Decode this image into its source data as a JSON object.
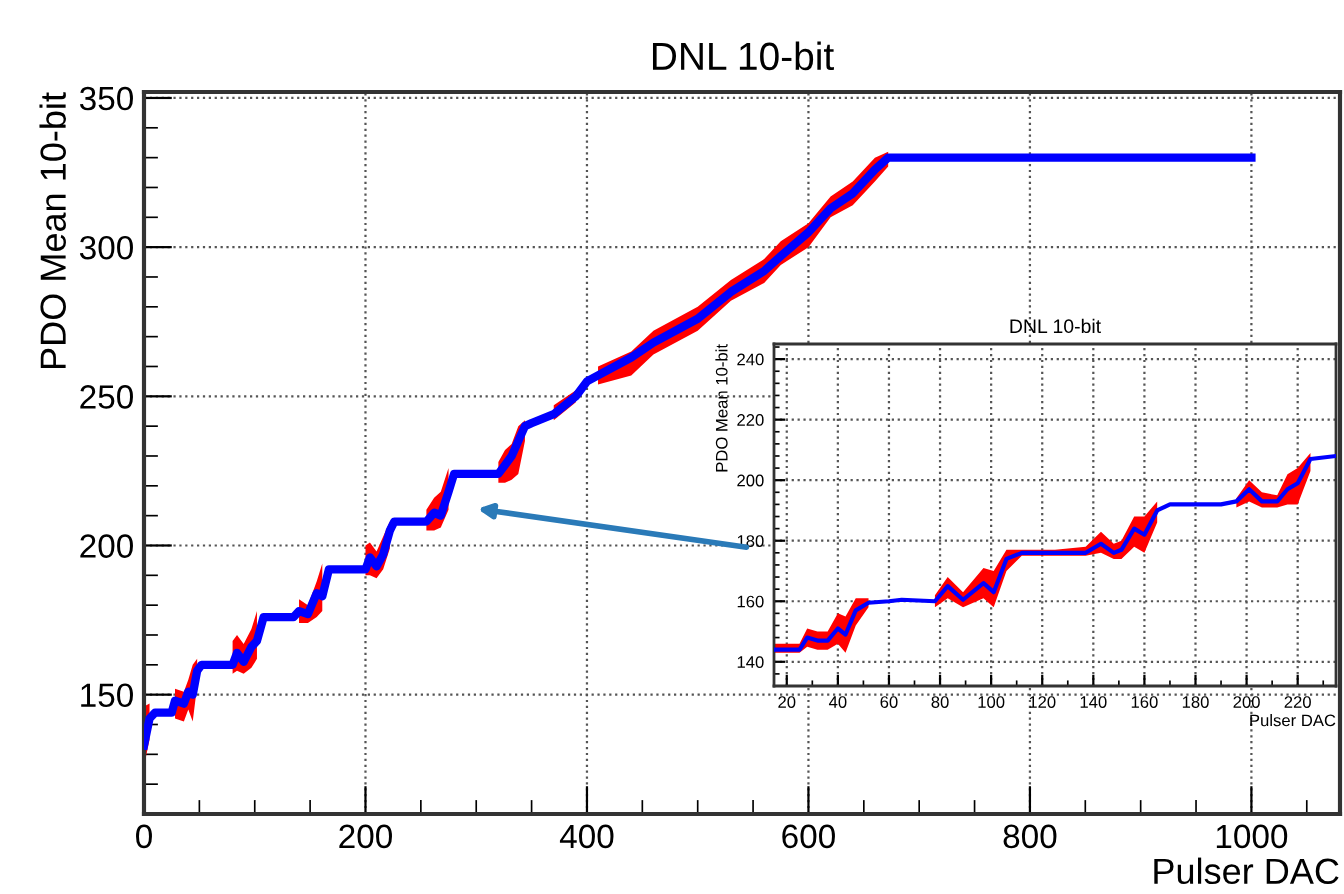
{
  "chart_data": [
    {
      "type": "line",
      "title": "DNL 10-bit",
      "xlabel": "Pulser DAC",
      "ylabel": "PDO Mean 10-bit",
      "xlim": [
        0,
        1080
      ],
      "xticks": [
        0,
        200,
        400,
        600,
        800,
        1000
      ],
      "ylim": [
        110,
        352
      ],
      "yticks": [
        150,
        200,
        250,
        300,
        350
      ],
      "grid": true,
      "legend": false,
      "marker": "none",
      "line_style": "solid",
      "series": [
        {
          "color": "#0000ff",
          "x": [
            0,
            5,
            10,
            25,
            28,
            36,
            40,
            44,
            48,
            52,
            80,
            84,
            90,
            97,
            102,
            108,
            135,
            140,
            148,
            156,
            161,
            167,
            200,
            204,
            210,
            216,
            222,
            226,
            255,
            262,
            268,
            275,
            280,
            320,
            326,
            332,
            338,
            344,
            350,
            370,
            390,
            400,
            410,
            440,
            460,
            500,
            530,
            560,
            575,
            600,
            620,
            640,
            660,
            672,
            1000
          ],
          "values": [
            133,
            142,
            144,
            144,
            148,
            147,
            151,
            150,
            158,
            160,
            160,
            164,
            161,
            166,
            168,
            176,
            176,
            178,
            177,
            184,
            183,
            192,
            192,
            196,
            193,
            197,
            205,
            208,
            208,
            211,
            210,
            218,
            224,
            224,
            227,
            230,
            235,
            240,
            241,
            244,
            250,
            255,
            257,
            263,
            268,
            276,
            285,
            292,
            297,
            305,
            313,
            318,
            326,
            330,
            330
          ],
          "lower": [
            126,
            135,
            null,
            null,
            142,
            141,
            145,
            141,
            153,
            null,
            157,
            158,
            157,
            159,
            162,
            null,
            null,
            174,
            174,
            176,
            178,
            null,
            190,
            190,
            189,
            192,
            199,
            null,
            205,
            205,
            206,
            212,
            null,
            221,
            221,
            222,
            224,
            235,
            null,
            242,
            248,
            null,
            254,
            257,
            264,
            272,
            282,
            288,
            294,
            300,
            310,
            314,
            322,
            327,
            null
          ],
          "upper": [
            146,
            147,
            null,
            null,
            152,
            151,
            155,
            160,
            162,
            null,
            168,
            170,
            167,
            172,
            178,
            null,
            null,
            182,
            180,
            188,
            194,
            null,
            200,
            201,
            198,
            203,
            208,
            null,
            212,
            216,
            218,
            226,
            null,
            228,
            232,
            234,
            240,
            242,
            null,
            247,
            252,
            null,
            260,
            265,
            272,
            280,
            289,
            296,
            302,
            308,
            317,
            322,
            330,
            332,
            null
          ]
        }
      ]
    },
    {
      "type": "line",
      "title": "DNL 10-bit",
      "xlabel": "Pulser DAC",
      "ylabel": "PDO Mean 10-bit",
      "xlim": [
        15,
        235
      ],
      "xticks": [
        20,
        40,
        60,
        80,
        100,
        120,
        140,
        160,
        180,
        200,
        220
      ],
      "ylim": [
        132,
        245
      ],
      "yticks": [
        140,
        160,
        180,
        200,
        220,
        240
      ],
      "grid": true,
      "legend": false,
      "marker": "none",
      "line_style": "solid",
      "series": [
        {
          "color": "#0000ff",
          "x": [
            15,
            25,
            28,
            32,
            36,
            40,
            43,
            47,
            52,
            60,
            65,
            78,
            83,
            89,
            97,
            101,
            106,
            112,
            125,
            137,
            143,
            148,
            151,
            156,
            160,
            165,
            170,
            190,
            196,
            201,
            206,
            212,
            216,
            220,
            225,
            235
          ],
          "values": [
            144,
            144,
            148,
            147,
            147,
            151,
            149,
            157,
            159.5,
            160,
            160.5,
            160,
            165,
            160.5,
            166,
            163,
            174,
            176,
            176,
            176,
            179,
            176,
            177,
            184,
            182,
            190,
            192,
            192,
            193,
            197,
            193,
            193,
            197,
            199,
            207,
            208
          ],
          "lower": [
            143,
            143,
            145,
            144,
            144,
            146,
            143,
            152,
            158,
            null,
            null,
            158,
            161,
            158,
            161,
            158,
            170,
            175,
            175,
            175,
            176,
            174,
            174,
            178,
            176,
            186,
            null,
            null,
            191,
            193,
            191,
            191,
            192,
            192,
            203,
            null
          ],
          "upper": [
            146,
            146,
            151,
            150,
            150,
            156,
            155,
            161,
            161,
            null,
            null,
            162,
            168,
            163,
            171,
            170,
            177,
            177,
            177,
            178,
            183,
            179,
            180,
            188,
            188,
            193,
            null,
            null,
            194,
            200,
            196,
            195,
            202,
            204,
            209,
            null
          ]
        }
      ]
    }
  ]
}
